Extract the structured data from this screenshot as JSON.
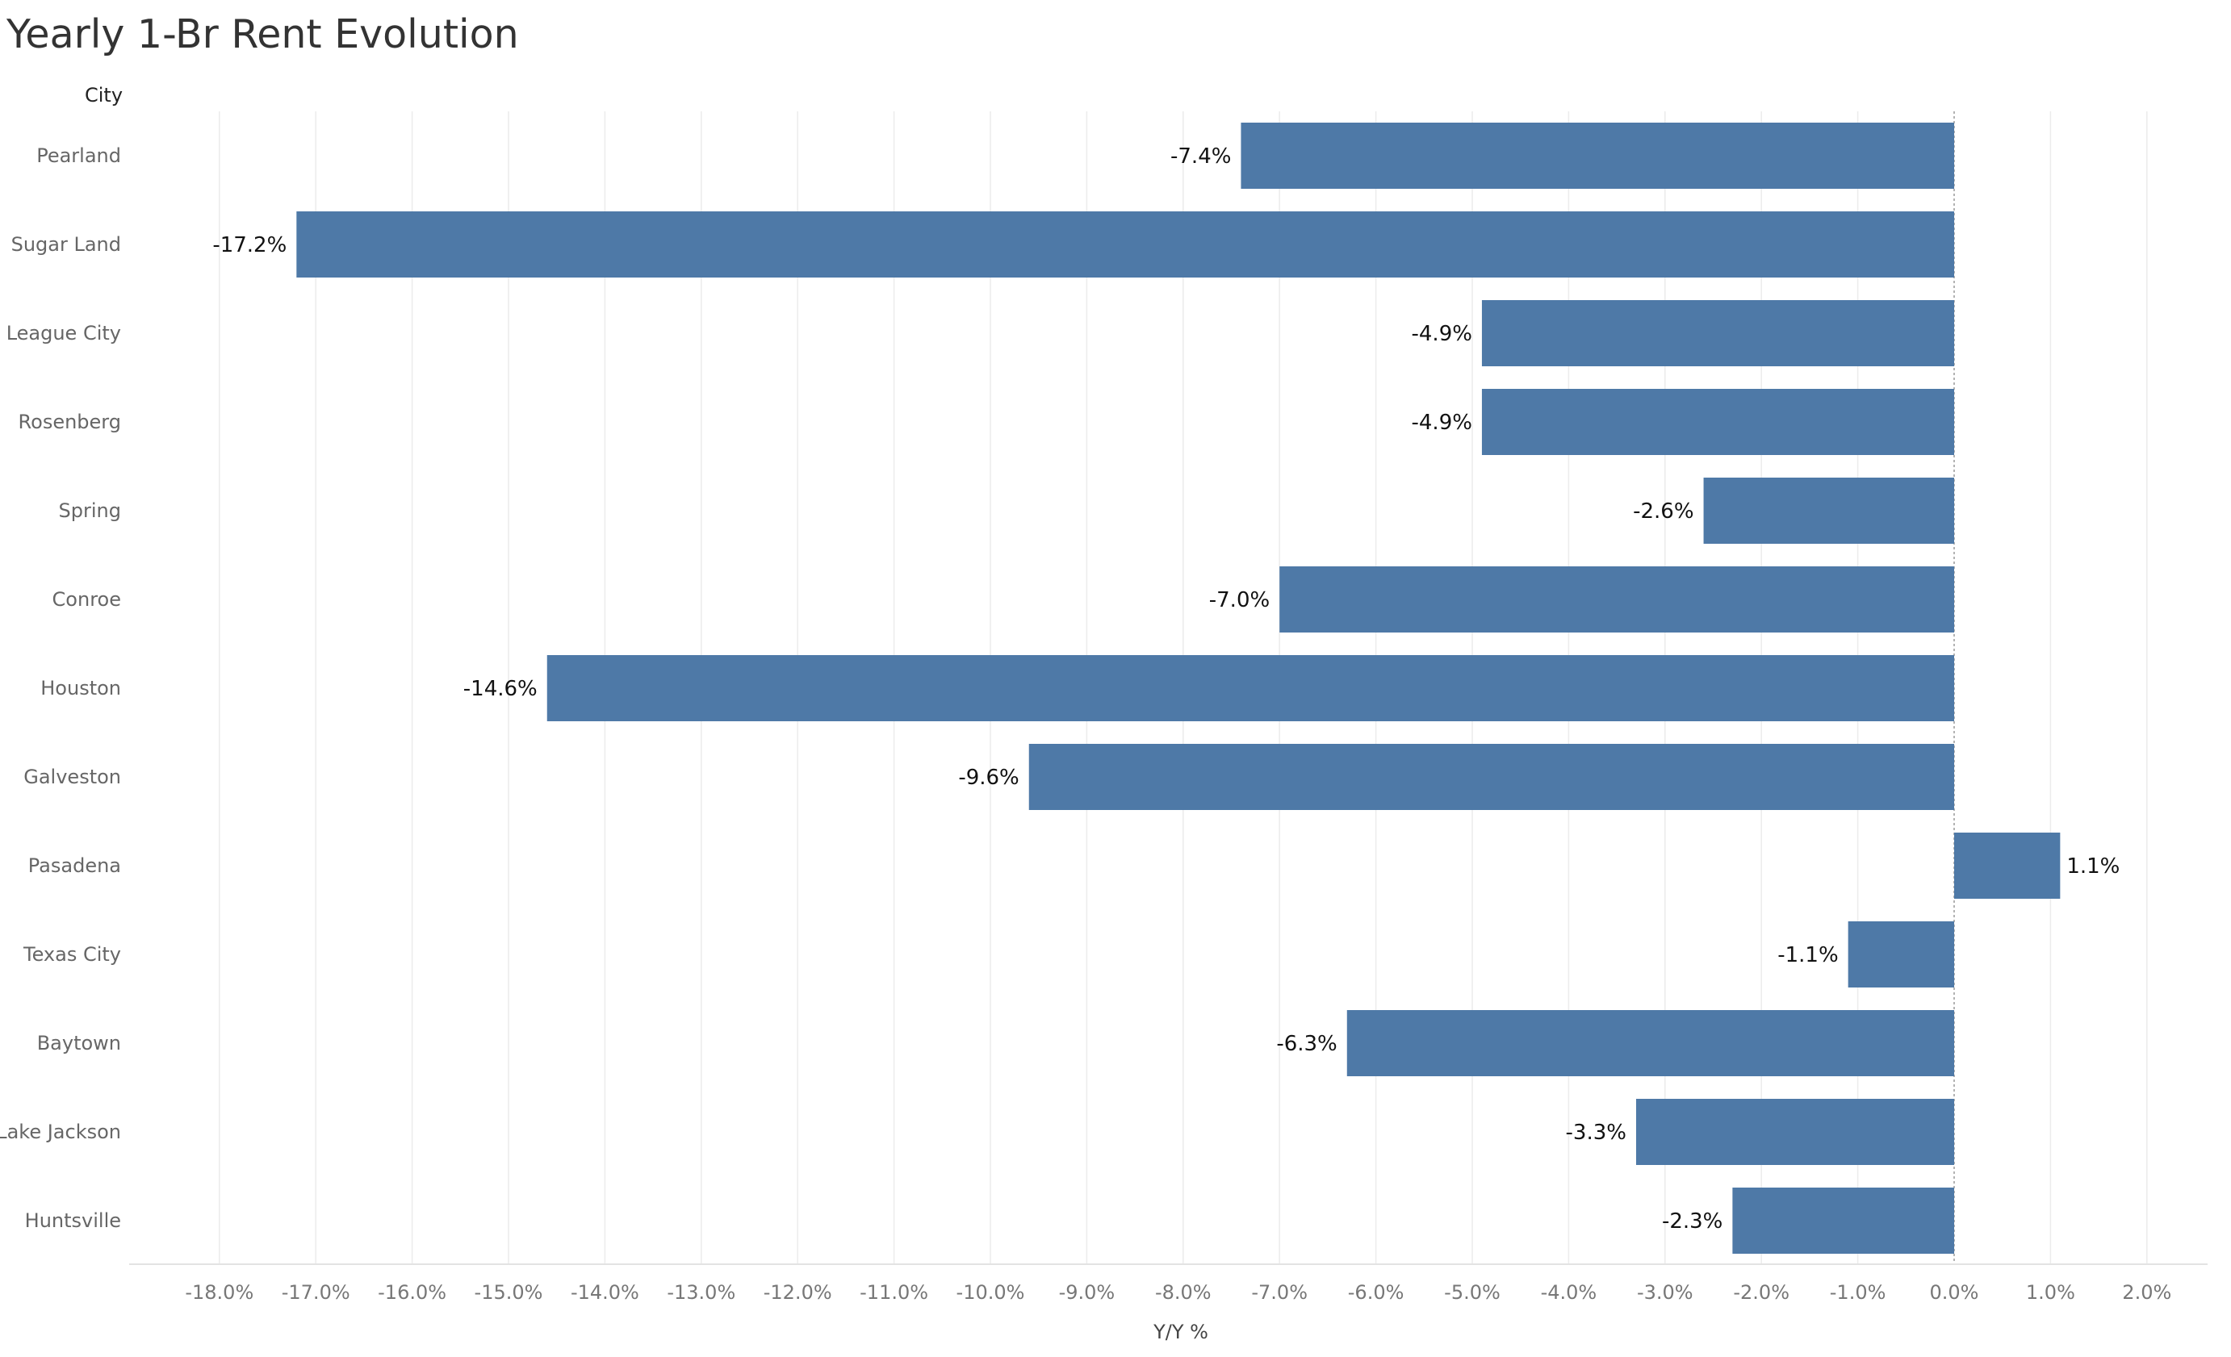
{
  "chart_data": {
    "type": "bar",
    "orientation": "horizontal",
    "title": "Yearly 1-Br Rent Evolution",
    "row_header": "City",
    "xlabel": "Y/Y %",
    "ylabel": "",
    "xlim": [
      -19.0,
      2.5
    ],
    "ticks": [
      "-18.0%",
      "-17.0%",
      "-16.0%",
      "-15.0%",
      "-14.0%",
      "-13.0%",
      "-12.0%",
      "-11.0%",
      "-10.0%",
      "-9.0%",
      "-8.0%",
      "-7.0%",
      "-6.0%",
      "-5.0%",
      "-4.0%",
      "-3.0%",
      "-2.0%",
      "-1.0%",
      "0.0%",
      "1.0%",
      "2.0%"
    ],
    "tick_values": [
      -18,
      -17,
      -16,
      -15,
      -14,
      -13,
      -12,
      -11,
      -10,
      -9,
      -8,
      -7,
      -6,
      -5,
      -4,
      -3,
      -2,
      -1,
      0,
      1,
      2
    ],
    "categories": [
      "Pearland",
      "Sugar Land",
      "League City",
      "Rosenberg",
      "Spring",
      "Conroe",
      "Houston",
      "Galveston",
      "Pasadena",
      "Texas City",
      "Baytown",
      "Lake Jackson",
      "Huntsville"
    ],
    "values": [
      -7.4,
      -17.2,
      -4.9,
      -4.9,
      -2.6,
      -7.0,
      -14.6,
      -9.6,
      1.1,
      -1.1,
      -6.3,
      -3.3,
      -2.3
    ],
    "data_labels": [
      "-7.4%",
      "-17.2%",
      "-4.9%",
      "-4.9%",
      "-2.6%",
      "-7.0%",
      "-14.6%",
      "-9.6%",
      "1.1%",
      "-1.1%",
      "-6.3%",
      "-3.3%",
      "-2.3%"
    ],
    "grid": true,
    "legend": "none",
    "bar_color": "#4e79a7"
  }
}
